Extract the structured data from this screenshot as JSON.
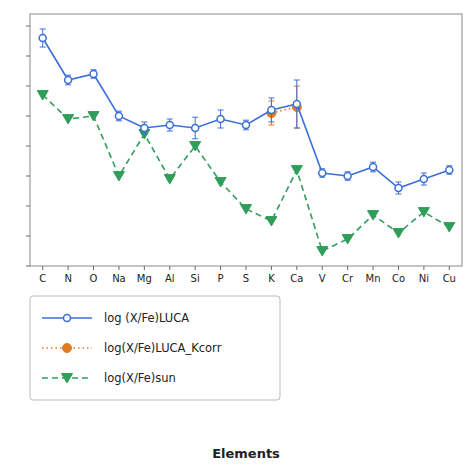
{
  "chart_data": {
    "type": "line",
    "x_label": "Elements",
    "categories": [
      "C",
      "N",
      "O",
      "Na",
      "Mg",
      "Al",
      "Si",
      "P",
      "S",
      "K",
      "Ca",
      "V",
      "Cr",
      "Mn",
      "Co",
      "Ni",
      "Cu"
    ],
    "series": [
      {
        "name": "log (X/Fe)LUCA",
        "marker": "open-circle",
        "line_style": "solid",
        "values": [
          3.8,
          3.1,
          3.2,
          2.5,
          2.3,
          2.35,
          2.3,
          2.45,
          2.35,
          2.6,
          2.7,
          1.55,
          1.5,
          1.65,
          1.3,
          1.45,
          1.6
        ],
        "errors": [
          0.15,
          0.08,
          0.07,
          0.08,
          0.1,
          0.1,
          0.18,
          0.15,
          0.08,
          0.2,
          0.4,
          0.07,
          0.07,
          0.08,
          0.1,
          0.1,
          0.07
        ]
      },
      {
        "name": "log(X/Fe)LUCA_Kcorr",
        "marker": "circle",
        "line_style": "dotted",
        "values": [
          null,
          null,
          null,
          null,
          null,
          null,
          null,
          null,
          null,
          2.55,
          2.65,
          null,
          null,
          null,
          null,
          null,
          null
        ],
        "errors": [
          null,
          null,
          null,
          null,
          null,
          null,
          null,
          null,
          null,
          0.2,
          0.35,
          null,
          null,
          null,
          null,
          null,
          null
        ]
      },
      {
        "name": "log(X/Fe)sun",
        "marker": "triangle-down",
        "line_style": "dashed",
        "values": [
          2.85,
          2.45,
          2.5,
          1.5,
          2.2,
          1.45,
          2.0,
          1.4,
          0.95,
          0.75,
          1.6,
          0.25,
          0.45,
          0.85,
          0.55,
          0.9,
          0.65
        ]
      }
    ],
    "ylim": [
      0.0,
      4.2
    ],
    "yticks": [
      0,
      0.5,
      1,
      1.5,
      2,
      2.5,
      3,
      3.5,
      4
    ],
    "tick_labels": "x",
    "grid": false
  }
}
